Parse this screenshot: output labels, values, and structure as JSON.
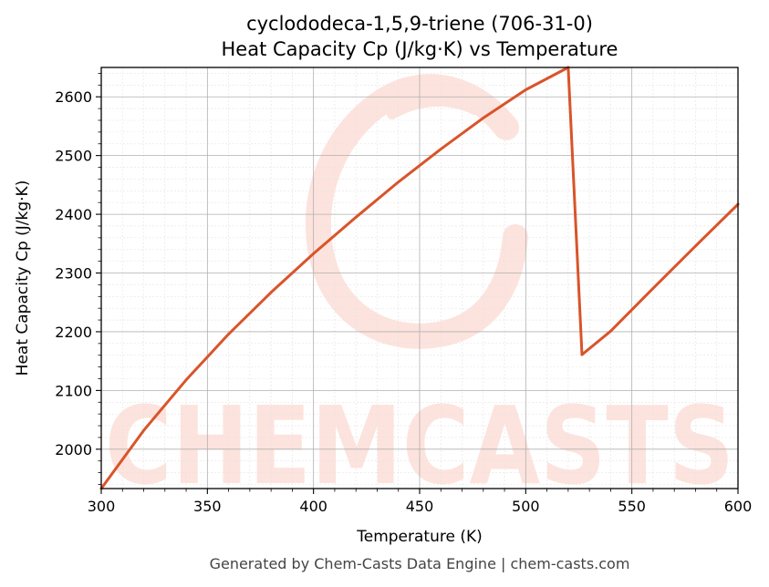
{
  "chart_data": {
    "type": "line",
    "title": "cyclododeca-1,5,9-triene (706-31-0)",
    "subtitle": "Heat Capacity Cp (J/kg·K) vs Temperature",
    "xlabel": "Temperature (K)",
    "ylabel": "Heat Capacity Cp (J/kg·K)",
    "xlim": [
      300,
      600
    ],
    "ylim": [
      1933,
      2650
    ],
    "xticks": [
      300,
      350,
      400,
      450,
      500,
      550,
      600
    ],
    "yticks": [
      2000,
      2100,
      2200,
      2300,
      2400,
      2500,
      2600
    ],
    "grid": true,
    "series": [
      {
        "color": "#d9542a",
        "x": [
          300,
          320,
          340,
          360,
          380,
          400,
          420,
          440,
          460,
          480,
          500,
          520,
          526.5,
          540,
          560,
          580,
          600
        ],
        "y": [
          1933,
          2032,
          2118,
          2196,
          2267,
          2333,
          2395,
          2455,
          2511,
          2564,
          2612,
          2650,
          2161,
          2201,
          2274,
          2346,
          2417
        ]
      }
    ]
  },
  "watermark": {
    "text": "CHEMCASTS",
    "color": "#fde3dd"
  },
  "footer": "Generated by Chem-Casts Data Engine | chem-casts.com"
}
